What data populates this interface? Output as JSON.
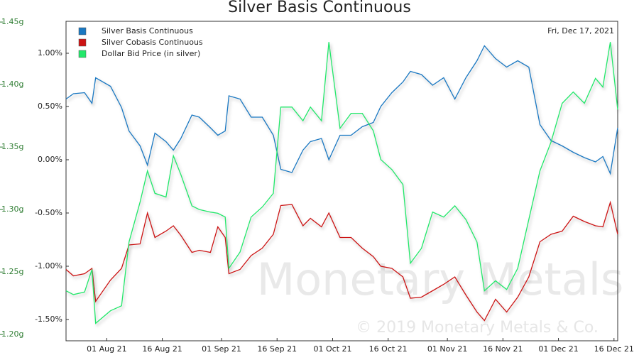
{
  "chart_data": {
    "type": "line",
    "title": "Silver Basis Continuous",
    "annotation": "Fri, Dec 17, 2021",
    "watermark": "Monetary Metals",
    "copyright": "© 2019 Monetary Metals & Co.",
    "legend": "top-left",
    "x": [
      "2021-07-21",
      "2021-07-23",
      "2021-07-26",
      "2021-07-28",
      "2021-07-29",
      "2021-08-02",
      "2021-08-05",
      "2021-08-07",
      "2021-08-10",
      "2021-08-12",
      "2021-08-14",
      "2021-08-17",
      "2021-08-19",
      "2021-08-21",
      "2021-08-24",
      "2021-08-26",
      "2021-08-29",
      "2021-08-31",
      "2021-09-02",
      "2021-09-03",
      "2021-09-06",
      "2021-09-09",
      "2021-09-12",
      "2021-09-15",
      "2021-09-17",
      "2021-09-20",
      "2021-09-23",
      "2021-09-25",
      "2021-09-28",
      "2021-09-30",
      "2021-10-03",
      "2021-10-06",
      "2021-10-09",
      "2021-10-12",
      "2021-10-14",
      "2021-10-17",
      "2021-10-20",
      "2021-10-22",
      "2021-10-25",
      "2021-10-28",
      "2021-10-31",
      "2021-11-03",
      "2021-11-06",
      "2021-11-09",
      "2021-11-11",
      "2021-11-14",
      "2021-11-17",
      "2021-11-20",
      "2021-11-23",
      "2021-11-26",
      "2021-11-29",
      "2021-12-02",
      "2021-12-05",
      "2021-12-08",
      "2021-12-11",
      "2021-12-13",
      "2021-12-15",
      "2021-12-17"
    ],
    "xlim": [
      "2021-07-21",
      "2021-12-17"
    ],
    "xticks": [
      {
        "value": "2021-08-01",
        "label": "01 Aug 21"
      },
      {
        "value": "2021-08-16",
        "label": "16 Aug 21"
      },
      {
        "value": "2021-09-01",
        "label": "01 Sep 21"
      },
      {
        "value": "2021-09-16",
        "label": "16 Sep 21"
      },
      {
        "value": "2021-10-01",
        "label": "01 Oct 21"
      },
      {
        "value": "2021-10-16",
        "label": "16 Oct 21"
      },
      {
        "value": "2021-11-01",
        "label": "01 Nov 21"
      },
      {
        "value": "2021-11-16",
        "label": "16 Nov 21"
      },
      {
        "value": "2021-12-01",
        "label": "01 Dec 21"
      },
      {
        "value": "2021-12-16",
        "label": "16 Dec 21"
      }
    ],
    "ylim": [
      -1.7,
      1.3
    ],
    "yticks": [
      {
        "value": -1.5,
        "label": "-1.50%"
      },
      {
        "value": -1,
        "label": "-1.00%"
      },
      {
        "value": -0.5,
        "label": "-0.50%"
      },
      {
        "value": 0,
        "label": "0.00%"
      },
      {
        "value": 0.5,
        "label": "0.50%"
      },
      {
        "value": 1,
        "label": "1.00%"
      }
    ],
    "y2lim": [
      1.195,
      1.4506
    ],
    "y2ticks": [
      {
        "value": 1.2,
        "label": "1.20g"
      },
      {
        "value": 1.25,
        "label": "1.25g"
      },
      {
        "value": 1.3,
        "label": "1.30g"
      },
      {
        "value": 1.35,
        "label": "1.35g"
      },
      {
        "value": 1.4,
        "label": "1.40g"
      },
      {
        "value": 1.45,
        "label": "1.45g"
      }
    ],
    "series": [
      {
        "name": "Silver Basis Continuous",
        "color": "#1a78c2",
        "values": [
          0.57,
          0.62,
          0.63,
          0.53,
          0.77,
          0.69,
          0.49,
          0.27,
          0.13,
          -0.05,
          0.25,
          0.17,
          0.09,
          0.2,
          0.42,
          0.4,
          0.3,
          0.23,
          0.27,
          0.6,
          0.57,
          0.4,
          0.4,
          0.23,
          -0.09,
          -0.12,
          0.09,
          0.17,
          0.2,
          0,
          0.23,
          0.23,
          0.31,
          0.35,
          0.5,
          0.63,
          0.73,
          0.83,
          0.8,
          0.7,
          0.77,
          0.57,
          0.77,
          0.93,
          1.07,
          0.95,
          0.87,
          0.93,
          0.87,
          0.33,
          0.18,
          0.13,
          0.07,
          0.02,
          -0.02,
          0.03,
          -0.13,
          0.3
        ]
      },
      {
        "name": "Silver Cobasis Continuous",
        "color": "#cc1414",
        "values": [
          -1.03,
          -1.09,
          -1.07,
          -1.02,
          -1.33,
          -1.13,
          -1.02,
          -0.8,
          -0.79,
          -0.5,
          -0.73,
          -0.67,
          -0.62,
          -0.71,
          -0.87,
          -0.85,
          -0.87,
          -0.63,
          -0.73,
          -1.07,
          -1.03,
          -0.9,
          -0.83,
          -0.7,
          -0.43,
          -0.42,
          -0.62,
          -0.55,
          -0.63,
          -0.5,
          -0.73,
          -0.73,
          -0.83,
          -0.91,
          -1,
          -1.02,
          -1.1,
          -1.3,
          -1.29,
          -1.23,
          -1.17,
          -1.1,
          -1.27,
          -1.43,
          -1.51,
          -1.31,
          -1.43,
          -1.29,
          -1.1,
          -0.77,
          -0.7,
          -0.67,
          -0.53,
          -0.58,
          -0.62,
          -0.63,
          -0.4,
          -0.7
        ]
      },
      {
        "name": "Dollar Bid Price (in silver)",
        "color": "#22e86a",
        "axis": "y2",
        "values": [
          1.235,
          1.232,
          1.234,
          1.252,
          1.209,
          1.219,
          1.223,
          1.274,
          1.306,
          1.331,
          1.313,
          1.31,
          1.343,
          1.328,
          1.303,
          1.3,
          1.298,
          1.297,
          1.294,
          1.253,
          1.266,
          1.294,
          1.302,
          1.313,
          1.382,
          1.382,
          1.371,
          1.382,
          1.371,
          1.434,
          1.365,
          1.377,
          1.377,
          1.363,
          1.34,
          1.332,
          1.32,
          1.257,
          1.269,
          1.298,
          1.294,
          1.303,
          1.292,
          1.274,
          1.235,
          1.243,
          1.236,
          1.253,
          1.292,
          1.331,
          1.354,
          1.385,
          1.394,
          1.385,
          1.405,
          1.398,
          1.434,
          1.38
        ]
      }
    ]
  }
}
